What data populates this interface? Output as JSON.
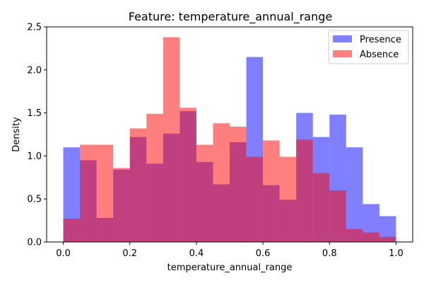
{
  "chart_data": {
    "type": "bar",
    "title": "Feature: temperature_annual_range",
    "xlabel": "temperature_annual_range",
    "ylabel": "Density",
    "xlim": [
      -0.05,
      1.05
    ],
    "ylim": [
      0,
      2.5
    ],
    "xticks": [
      "0.0",
      "0.2",
      "0.4",
      "0.6",
      "0.8",
      "1.0"
    ],
    "yticks": [
      "0.0",
      "0.5",
      "1.0",
      "1.5",
      "2.0",
      "2.5"
    ],
    "grid": false,
    "legend_position": "top-right",
    "series": [
      {
        "name": "Presence",
        "color": "#0000ff",
        "opacity": 0.5,
        "bin_edges": [
          0.0,
          0.05,
          0.1,
          0.15,
          0.2,
          0.25,
          0.3,
          0.35,
          0.4,
          0.45,
          0.5,
          0.55,
          0.6,
          0.65,
          0.7,
          0.75,
          0.8,
          0.85,
          0.9,
          0.95,
          1.0
        ],
        "values": [
          1.1,
          0.95,
          0.28,
          0.84,
          1.22,
          0.91,
          1.26,
          1.52,
          0.93,
          0.67,
          1.16,
          2.15,
          0.66,
          0.49,
          1.5,
          1.22,
          1.48,
          1.1,
          0.44,
          0.3
        ]
      },
      {
        "name": "Absence",
        "color": "#ff0000",
        "opacity": 0.5,
        "bin_edges": [
          0.0,
          0.05,
          0.1,
          0.15,
          0.2,
          0.25,
          0.3,
          0.35,
          0.4,
          0.45,
          0.5,
          0.55,
          0.6,
          0.65,
          0.7,
          0.75,
          0.8,
          0.85,
          0.9,
          0.95,
          1.0
        ],
        "values": [
          0.27,
          1.13,
          1.13,
          0.86,
          1.32,
          1.49,
          2.38,
          1.56,
          1.13,
          1.38,
          1.34,
          0.99,
          1.18,
          0.99,
          1.19,
          0.8,
          0.6,
          0.15,
          0.11,
          0.06
        ]
      }
    ]
  }
}
